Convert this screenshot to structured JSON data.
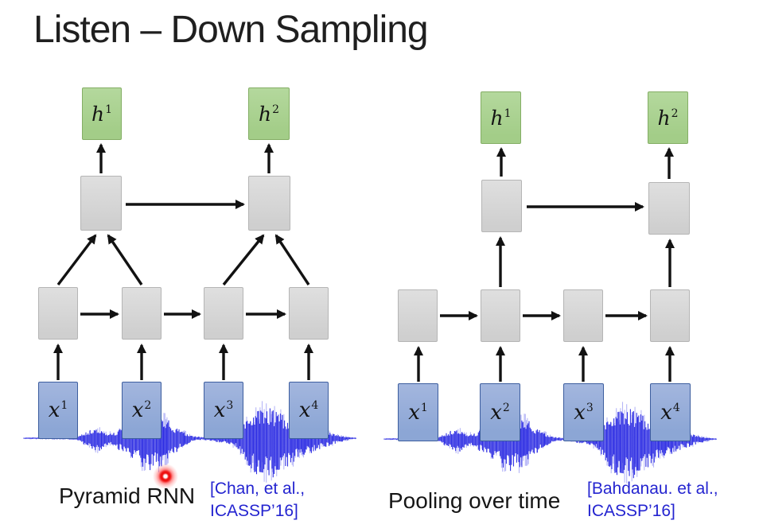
{
  "title": "Listen – Down Sampling",
  "colors": {
    "title_color": "#1f1f1f",
    "caption_color": "#161616",
    "green_box": "#a3cd88",
    "green_border": "#84ae65",
    "gray_box": "#cfcfcf",
    "gray_border": "#b5b5b5",
    "blue_box": "#8ca6d5",
    "blue_border": "#3d5e9f",
    "waveform_blue": "#1c1ce0",
    "citation_blue": "#2424d0",
    "arrow_black": "#121212",
    "laser_red": "#ee1111"
  },
  "left": {
    "caption": "Pyramid RNN",
    "citation": {
      "line1": "[Chan, et al.,",
      "line2": "ICASSP’16]"
    },
    "outputs": [
      {
        "base": "h",
        "sup": "1"
      },
      {
        "base": "h",
        "sup": "2"
      }
    ],
    "inputs": [
      {
        "base": "x",
        "sup": "1"
      },
      {
        "base": "x",
        "sup": "2"
      },
      {
        "base": "x",
        "sup": "3"
      },
      {
        "base": "x",
        "sup": "4"
      }
    ]
  },
  "right": {
    "caption": "Pooling over time",
    "citation": {
      "line1": "[Bahdanau. et al.,",
      "line2": "ICASSP’16]"
    },
    "outputs": [
      {
        "base": "h",
        "sup": "1"
      },
      {
        "base": "h",
        "sup": "2"
      }
    ],
    "inputs": [
      {
        "base": "x",
        "sup": "1"
      },
      {
        "base": "x",
        "sup": "2"
      },
      {
        "base": "x",
        "sup": "3"
      },
      {
        "base": "x",
        "sup": "4"
      }
    ]
  }
}
